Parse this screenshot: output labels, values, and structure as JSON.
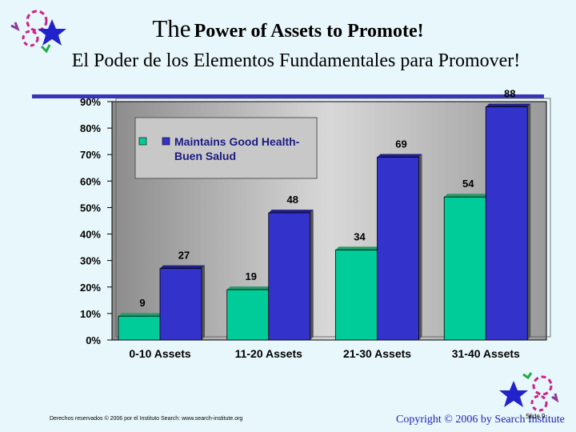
{
  "title": {
    "line1_the": "The",
    "line1_rest": "Power of Assets to Promote!",
    "line2": "El Poder de los Elementos Fundamentales para Promover!"
  },
  "chart_data": {
    "type": "bar",
    "categories": [
      "0-10 Assets",
      "11-20 Assets",
      "21-30 Assets",
      "31-40 Assets"
    ],
    "series": [
      {
        "name": "",
        "values": [
          9,
          19,
          34,
          54
        ],
        "color": "#00cc99"
      },
      {
        "name": "Maintains Good Health-Buen Salud",
        "values": [
          27,
          48,
          69,
          88
        ],
        "color": "#3333cc"
      }
    ],
    "legend_line1": "Maintains Good Health-",
    "legend_line2": "Buen Salud",
    "legend_placement": "top-left",
    "ylim": [
      0,
      90
    ],
    "yticks": [
      "0%",
      "10%",
      "20%",
      "30%",
      "40%",
      "50%",
      "60%",
      "70%",
      "80%",
      "90%"
    ],
    "xlabel": "",
    "ylabel": "",
    "grid": false
  },
  "footer": {
    "left": "Derechos reservados © 2006 por el Instituto Search: www.search-institute.org",
    "right": "Copyright © 2006 by Search Institute",
    "slide": "Slide 9"
  },
  "colors": {
    "background": "#e8f7fb",
    "plot_bg": "#c0c0c0",
    "accent": "#3a35b8"
  }
}
